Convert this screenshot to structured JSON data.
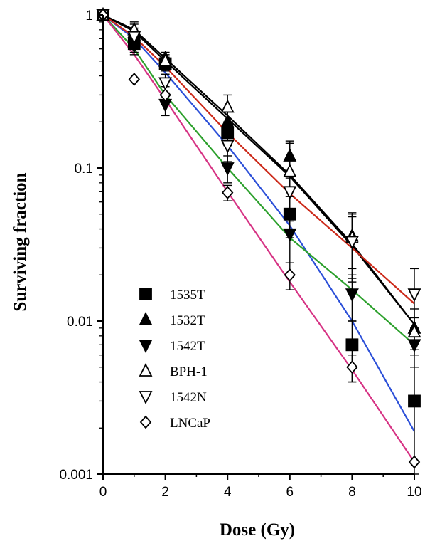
{
  "chart_data": {
    "type": "scatter",
    "xlabel": "Dose (Gy)",
    "ylabel": "Surviving fraction",
    "xlim": [
      0,
      10
    ],
    "ylim": [
      0.001,
      1
    ],
    "yscale": "log",
    "grid": false,
    "legend_position": "bottom-left",
    "x_ticks": [
      0,
      2,
      4,
      6,
      8,
      10
    ],
    "x_tick_labels": [
      "0",
      "2",
      "4",
      "6",
      "8",
      "10"
    ],
    "y_ticks": [
      1,
      0.1,
      0.01,
      0.001
    ],
    "y_tick_labels": [
      "1",
      "0.1",
      "0.01",
      "0.001"
    ],
    "series": [
      {
        "name": "1535T",
        "marker": "square-filled",
        "x": [
          0,
          1,
          2,
          4,
          6,
          8,
          10
        ],
        "y": [
          1,
          0.65,
          0.48,
          0.17,
          0.05,
          0.007,
          0.003
        ],
        "err": [
          0,
          0.08,
          0.05,
          0.03,
          0.015,
          0.003,
          0.002
        ],
        "fit": [
          1,
          0.7,
          0.42,
          0.14,
          0.042,
          0.01,
          0.0019
        ],
        "fit_color": "#2b4fd8"
      },
      {
        "name": "1532T",
        "marker": "triangle-up-filled",
        "x": [
          0,
          1,
          2,
          4,
          6,
          8,
          10
        ],
        "y": [
          1,
          0.77,
          0.52,
          0.2,
          0.12,
          0.036,
          0.009
        ],
        "err": [
          0,
          0.1,
          0.05,
          0.04,
          0.03,
          0.014,
          0.003
        ],
        "fit": [
          1,
          0.8,
          0.52,
          0.22,
          0.09,
          0.032,
          0.0095
        ],
        "fit_color": "#000000"
      },
      {
        "name": "1542T",
        "marker": "triangle-down-filled",
        "x": [
          0,
          1,
          2,
          4,
          6,
          8,
          10
        ],
        "y": [
          1,
          0.63,
          0.26,
          0.1,
          0.037,
          0.015,
          0.007
        ],
        "err": [
          0,
          0.08,
          0.04,
          0.02,
          0.013,
          0.005,
          0.002
        ],
        "fit": [
          1,
          0.6,
          0.3,
          0.1,
          0.035,
          0.016,
          0.007
        ],
        "fit_color": "#2ca02c"
      },
      {
        "name": "BPH-1",
        "marker": "triangle-up-open",
        "x": [
          0,
          1,
          2,
          4,
          6,
          8,
          10
        ],
        "y": [
          1,
          0.8,
          0.5,
          0.25,
          0.095,
          0.035,
          0.0085
        ],
        "err": [
          0,
          0.1,
          0.05,
          0.05,
          0.05,
          0.016,
          0.002
        ],
        "fit": [
          1,
          0.78,
          0.5,
          0.21,
          0.088,
          0.031,
          0.0095
        ],
        "fit_color": "#000000"
      },
      {
        "name": "1542N",
        "marker": "triangle-down-open",
        "x": [
          0,
          1,
          2,
          4,
          6,
          8,
          10
        ],
        "y": [
          1,
          0.72,
          0.36,
          0.14,
          0.07,
          0.033,
          0.015
        ],
        "err": [
          0,
          0.1,
          0.05,
          0.03,
          0.016,
          0.015,
          0.007
        ],
        "fit": [
          1,
          0.72,
          0.46,
          0.17,
          0.068,
          0.03,
          0.013
        ],
        "fit_color": "#cc2a1a"
      },
      {
        "name": "LNCaP",
        "marker": "diamond-open",
        "x": [
          0,
          1,
          2,
          4,
          6,
          8,
          10
        ],
        "y": [
          1,
          0.38,
          0.3,
          0.069,
          0.02,
          0.005,
          0.0012
        ],
        "err": [
          0,
          0,
          0.04,
          0.008,
          0.004,
          0.001,
          0
        ],
        "fit": [
          1,
          0.55,
          0.28,
          0.07,
          0.018,
          0.0048,
          0.0012
        ],
        "fit_color": "#d63384"
      }
    ]
  }
}
